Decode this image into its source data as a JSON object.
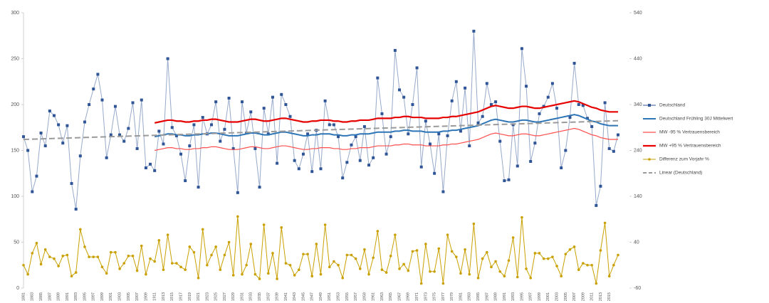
{
  "chart_data": {
    "type": "line",
    "categories": [
      "1881",
      null,
      "1883",
      null,
      "1885",
      null,
      "1887",
      null,
      "1889",
      null,
      "1891",
      null,
      "1893",
      null,
      "1895",
      null,
      "1897",
      null,
      "1899",
      null,
      "1901",
      null,
      "1903",
      null,
      "1905",
      null,
      "1907",
      null,
      "1909",
      null,
      "1911",
      null,
      "1913",
      null,
      "1915",
      null,
      "1917",
      null,
      "1919",
      null,
      "1921",
      null,
      "1923",
      null,
      "1925",
      null,
      "1927",
      null,
      "1929",
      null,
      "1931",
      null,
      "1933",
      null,
      "1935",
      null,
      "1937",
      null,
      "1939",
      null,
      "1941",
      null,
      "1943",
      null,
      "1945",
      null,
      "1947",
      null,
      "1949",
      null,
      "1951",
      null,
      "1953",
      null,
      "1955",
      null,
      "1957",
      null,
      "1959",
      null,
      "1961",
      null,
      "1963",
      null,
      "1965",
      null,
      "1967",
      null,
      "1969",
      null,
      "1971",
      null,
      "1973",
      null,
      "1975",
      null,
      "1977",
      null,
      "1979",
      null,
      "1981",
      null,
      "1983",
      null,
      "1985",
      null,
      "1987",
      null,
      "1989",
      null,
      "1991",
      null,
      "1993",
      null,
      "1995",
      null,
      "1997",
      null,
      "1999",
      null,
      "2001",
      null,
      "2003",
      null,
      "2005",
      null,
      "2007",
      null,
      "2009",
      null,
      "2011",
      null,
      "2013",
      null,
      "2015",
      null,
      null
    ],
    "ylim": [
      0,
      300
    ],
    "yticks": [
      0,
      50,
      100,
      150,
      200,
      250,
      300
    ],
    "y2lim": [
      -60,
      540
    ],
    "y2ticks": [
      -60,
      40,
      140,
      240,
      340,
      440,
      540
    ],
    "legend": "right",
    "series": [
      {
        "name": "Deutschland",
        "color": "#2f5597",
        "marker": "square",
        "line_width": 1,
        "values": [
          165,
          150,
          105,
          122,
          169,
          155,
          193,
          188,
          178,
          158,
          177,
          114,
          86,
          144,
          181,
          200,
          217,
          233,
          205,
          142,
          167,
          198,
          167,
          160,
          174,
          202,
          152,
          205,
          131,
          135,
          128,
          171,
          157,
          250,
          175,
          166,
          146,
          117,
          155,
          178,
          110,
          186,
          168,
          178,
          203,
          160,
          173,
          207,
          152,
          104,
          203,
          169,
          192,
          152,
          110,
          196,
          168,
          208,
          136,
          211,
          200,
          187,
          139,
          130,
          146,
          168,
          127,
          172,
          130,
          204,
          178,
          178,
          165,
          120,
          137,
          156,
          165,
          139,
          176,
          134,
          142,
          229,
          190,
          146,
          165,
          259,
          216,
          208,
          168,
          200,
          240,
          132,
          182,
          157,
          125,
          168,
          105,
          166,
          204,
          225,
          171,
          218,
          155,
          280,
          180,
          187,
          223,
          200,
          203,
          160,
          117,
          118,
          178,
          133,
          261,
          220,
          138,
          158,
          190,
          198,
          208,
          223,
          196,
          131,
          150,
          186,
          245,
          200,
          199,
          185,
          176,
          90,
          111,
          202,
          152,
          149,
          167
        ]
      },
      {
        "name": "Deutschland Frühling 30J Mittelwert",
        "color": "#2e75b6",
        "line_width": 2,
        "values": [
          null,
          null,
          null,
          null,
          null,
          null,
          null,
          null,
          null,
          null,
          null,
          null,
          null,
          null,
          null,
          null,
          null,
          null,
          null,
          null,
          null,
          null,
          null,
          null,
          null,
          null,
          null,
          null,
          null,
          null,
          165,
          166,
          167,
          168,
          168,
          167,
          167,
          166,
          166,
          167,
          167,
          168,
          168,
          169,
          169,
          168,
          167,
          166,
          166,
          166,
          167,
          168,
          169,
          169,
          168,
          167,
          167,
          168,
          169,
          170,
          170,
          169,
          168,
          167,
          166,
          166,
          167,
          167,
          168,
          168,
          168,
          167,
          167,
          166,
          166,
          167,
          167,
          168,
          168,
          168,
          169,
          170,
          170,
          170,
          170,
          171,
          171,
          172,
          172,
          171,
          171,
          171,
          170,
          170,
          170,
          170,
          171,
          171,
          172,
          172,
          173,
          174,
          175,
          176,
          177,
          179,
          181,
          183,
          184,
          183,
          182,
          181,
          181,
          182,
          183,
          183,
          182,
          181,
          181,
          182,
          183,
          184,
          185,
          186,
          187,
          188,
          189,
          188,
          186,
          184,
          182,
          181,
          179,
          178,
          177,
          177,
          177
        ]
      },
      {
        "name": "MW -95 % Vertrauensbereich",
        "color": "#ff4d4d",
        "line_width": 1.2,
        "values": [
          null,
          null,
          null,
          null,
          null,
          null,
          null,
          null,
          null,
          null,
          null,
          null,
          null,
          null,
          null,
          null,
          null,
          null,
          null,
          null,
          null,
          null,
          null,
          null,
          null,
          null,
          null,
          null,
          null,
          null,
          150,
          151,
          152,
          153,
          153,
          152,
          152,
          151,
          151,
          152,
          152,
          153,
          153,
          154,
          154,
          153,
          152,
          151,
          151,
          151,
          152,
          153,
          154,
          154,
          153,
          152,
          152,
          153,
          154,
          155,
          155,
          154,
          153,
          152,
          151,
          151,
          152,
          152,
          153,
          153,
          153,
          152,
          152,
          151,
          151,
          152,
          152,
          153,
          153,
          153,
          154,
          155,
          155,
          155,
          155,
          156,
          156,
          157,
          157,
          156,
          156,
          156,
          155,
          155,
          155,
          155,
          156,
          156,
          157,
          157,
          158,
          159,
          160,
          161,
          162,
          164,
          166,
          168,
          169,
          168,
          167,
          166,
          166,
          167,
          168,
          168,
          167,
          166,
          166,
          167,
          168,
          169,
          170,
          171,
          172,
          173,
          174,
          173,
          171,
          169,
          167,
          166,
          164,
          163,
          162,
          162,
          162
        ]
      },
      {
        "name": "MW +95 % Vertrauensbereich",
        "color": "#e60000",
        "line_width": 2.2,
        "values": [
          null,
          null,
          null,
          null,
          null,
          null,
          null,
          null,
          null,
          null,
          null,
          null,
          null,
          null,
          null,
          null,
          null,
          null,
          null,
          null,
          null,
          null,
          null,
          null,
          null,
          null,
          null,
          null,
          null,
          null,
          180,
          181,
          182,
          183,
          183,
          182,
          182,
          181,
          181,
          182,
          182,
          183,
          183,
          184,
          184,
          183,
          182,
          181,
          181,
          181,
          182,
          183,
          184,
          184,
          183,
          182,
          182,
          183,
          184,
          185,
          185,
          184,
          183,
          182,
          181,
          181,
          182,
          182,
          183,
          183,
          183,
          182,
          182,
          181,
          181,
          182,
          182,
          183,
          183,
          183,
          184,
          185,
          185,
          185,
          185,
          186,
          186,
          187,
          187,
          186,
          186,
          186,
          185,
          185,
          185,
          185,
          186,
          186,
          187,
          187,
          188,
          189,
          190,
          191,
          192,
          194,
          196,
          198,
          199,
          198,
          197,
          196,
          196,
          197,
          198,
          198,
          197,
          196,
          196,
          197,
          198,
          199,
          200,
          201,
          202,
          203,
          204,
          203,
          201,
          199,
          197,
          196,
          194,
          193,
          192,
          192,
          192
        ]
      },
      {
        "name": "Differenz zum Vorjahr %",
        "color": "#c9a000",
        "marker": "circle",
        "line_width": 1,
        "axis": "y2",
        "values": [
          -10,
          -30,
          16,
          38,
          -8,
          24,
          8,
          4,
          -12,
          10,
          12,
          -34,
          -26,
          68,
          30,
          8,
          8,
          8,
          -14,
          -28,
          18,
          18,
          -18,
          -6,
          10,
          10,
          -22,
          32,
          -30,
          4,
          -2,
          44,
          -20,
          56,
          -6,
          -6,
          -14,
          -20,
          30,
          18,
          -38,
          68,
          -10,
          12,
          30,
          -20,
          12,
          40,
          -32,
          96,
          -30,
          -10,
          36,
          -30,
          -40,
          78,
          -28,
          16,
          -40,
          72,
          -6,
          -10,
          -32,
          -20,
          14,
          14,
          -34,
          36,
          -30,
          78,
          -14,
          -2,
          -10,
          -38,
          12,
          12,
          4,
          -18,
          24,
          -30,
          6,
          64,
          -20,
          -26,
          10,
          56,
          -18,
          -8,
          -22,
          20,
          22,
          -50,
          36,
          -24,
          -24,
          26,
          -50,
          56,
          20,
          8,
          -28,
          24,
          -30,
          80,
          -38,
          4,
          18,
          -14,
          -2,
          -24,
          -34,
          0,
          50,
          -36,
          94,
          -18,
          -38,
          16,
          16,
          4,
          4,
          8,
          -12,
          -34,
          14,
          24,
          30,
          -20,
          -6,
          -10,
          -10,
          -50,
          22,
          82,
          -34,
          -10,
          12
        ]
      },
      {
        "name": "Linear (Deutschland)",
        "color": "#9a9a9a",
        "dashed": true,
        "line_width": 2,
        "values": [
          162,
          162.15,
          162.3,
          162.45,
          162.6,
          162.75,
          162.9,
          163.05,
          163.2,
          163.35,
          163.5,
          163.65,
          163.8,
          163.95,
          164.1,
          164.25,
          164.4,
          164.55,
          164.7,
          164.85,
          165,
          165.15,
          165.3,
          165.45,
          165.6,
          165.75,
          165.9,
          166.05,
          166.2,
          166.35,
          166.5,
          166.65,
          166.8,
          166.95,
          167.1,
          167.25,
          167.4,
          167.55,
          167.7,
          167.85,
          168,
          168.15,
          168.3,
          168.45,
          168.6,
          168.75,
          168.9,
          169.05,
          169.2,
          169.35,
          169.5,
          169.65,
          169.8,
          169.95,
          170.1,
          170.25,
          170.4,
          170.55,
          170.7,
          170.85,
          171,
          171.15,
          171.3,
          171.45,
          171.6,
          171.75,
          171.9,
          172.05,
          172.2,
          172.35,
          172.5,
          172.65,
          172.8,
          172.95,
          173.1,
          173.25,
          173.4,
          173.55,
          173.7,
          173.85,
          174,
          174.15,
          174.3,
          174.45,
          174.6,
          174.75,
          174.9,
          175.05,
          175.2,
          175.35,
          175.5,
          175.65,
          175.8,
          175.95,
          176.1,
          176.25,
          176.4,
          176.55,
          176.7,
          176.85,
          177,
          177.15,
          177.3,
          177.45,
          177.6,
          177.75,
          177.9,
          178.05,
          178.2,
          178.35,
          178.5,
          178.65,
          178.8,
          178.95,
          179.1,
          179.25,
          179.4,
          179.55,
          179.7,
          179.85,
          180,
          180.15,
          180.3,
          180.45,
          180.6,
          180.75,
          180.9,
          181.05,
          181.2,
          181.35,
          181.5,
          181.65,
          181.8,
          181.95,
          182.1,
          182.25,
          182.4
        ]
      }
    ]
  }
}
